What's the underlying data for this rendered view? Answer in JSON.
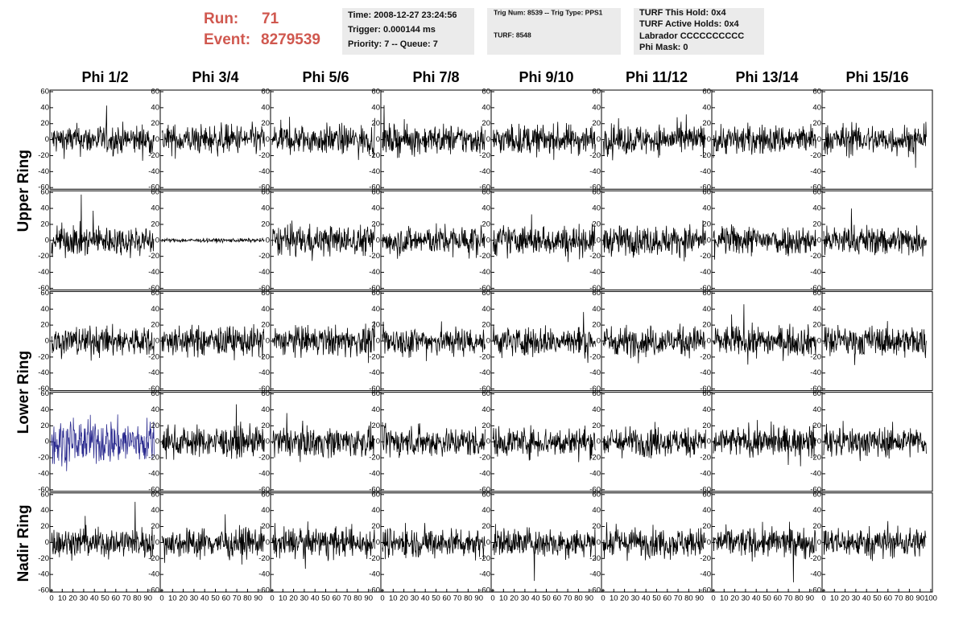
{
  "header": {
    "run_label": "Run:",
    "run": "71",
    "event_label": "Event:",
    "event": "8279539",
    "info_boxes": [
      [
        "Time: 2008-12-27 23:24:56",
        "Trigger: 0.000144 ms",
        "Priority: 7 -- Queue: 7"
      ],
      [
        "Trig Num: 8539 -- Trig Type: PPS1",
        "TURF: 8548"
      ],
      [
        "TURF This Hold: 0x4",
        "TURF Active Holds: 0x4",
        "Labrador CCCCCCCCCC",
        "Phi Mask: 0"
      ]
    ]
  },
  "columns": [
    "Phi 1/2",
    "Phi 3/4",
    "Phi 5/6",
    "Phi 7/8",
    "Phi 9/10",
    "Phi 11/12",
    "Phi 13/14",
    "Phi 15/16"
  ],
  "rows": [
    "Upper Ring",
    "Lower Ring",
    "Nadir Ring"
  ],
  "yticks": [
    -60,
    -40,
    -20,
    0,
    20,
    40,
    60
  ],
  "xticks": [
    0,
    10,
    20,
    30,
    40,
    50,
    60,
    70,
    80,
    90,
    100
  ]
}
